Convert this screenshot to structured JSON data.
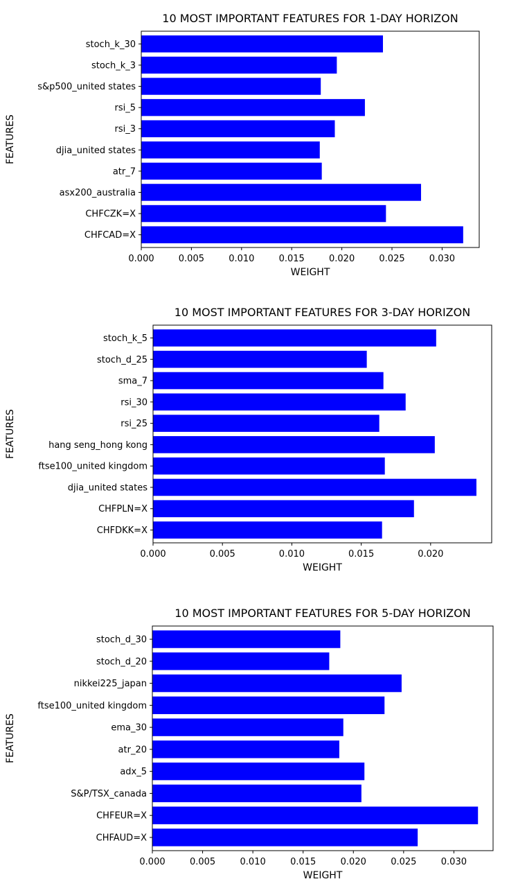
{
  "chart_data": [
    {
      "type": "bar",
      "orientation": "horizontal",
      "title": "10 MOST IMPORTANT FEATURES FOR 1-DAY HORIZON",
      "xlabel": "WEIGHT",
      "ylabel": "FEATURES",
      "categories": [
        "stoch_k_30",
        "stoch_k_3",
        "s&p500_united states",
        "rsi_5",
        "rsi_3",
        "djia_united states",
        "atr_7",
        "asx200_australia",
        "CHFCZK=X",
        "CHFCAD=X"
      ],
      "values": [
        0.0241,
        0.0195,
        0.0179,
        0.0223,
        0.0193,
        0.0178,
        0.018,
        0.0279,
        0.0244,
        0.0321
      ],
      "xlim": [
        0.0,
        0.0337
      ],
      "xticks": [
        "0.000",
        "0.005",
        "0.010",
        "0.015",
        "0.020",
        "0.025",
        "0.030"
      ],
      "bar_color": "#0000ff",
      "grid": false
    },
    {
      "type": "bar",
      "orientation": "horizontal",
      "title": "10 MOST IMPORTANT FEATURES FOR 3-DAY HORIZON",
      "xlabel": "WEIGHT",
      "ylabel": "FEATURES",
      "categories": [
        "stoch_k_5",
        "stoch_d_25",
        "sma_7",
        "rsi_30",
        "rsi_25",
        "hang seng_hong kong",
        "ftse100_united kingdom",
        "djia_united states",
        "CHFPLN=X",
        "CHFDKK=X"
      ],
      "values": [
        0.0204,
        0.0154,
        0.0166,
        0.0182,
        0.0163,
        0.0203,
        0.0167,
        0.0233,
        0.0188,
        0.0165
      ],
      "xlim": [
        0.0,
        0.0244
      ],
      "xticks": [
        "0.000",
        "0.005",
        "0.010",
        "0.015",
        "0.020"
      ],
      "bar_color": "#0000ff",
      "grid": false
    },
    {
      "type": "bar",
      "orientation": "horizontal",
      "title": "10 MOST IMPORTANT FEATURES FOR 5-DAY HORIZON",
      "xlabel": "WEIGHT",
      "ylabel": "FEATURES",
      "categories": [
        "stoch_d_30",
        "stoch_d_20",
        "nikkei225_japan",
        "ftse100_united kingdom",
        "ema_30",
        "atr_20",
        "adx_5",
        "S&P/TSX_canada",
        "CHFEUR=X",
        "CHFAUD=X"
      ],
      "values": [
        0.0187,
        0.0176,
        0.0248,
        0.0231,
        0.019,
        0.0186,
        0.0211,
        0.0208,
        0.0324,
        0.0264
      ],
      "xlim": [
        0.0,
        0.0339
      ],
      "xticks": [
        "0.000",
        "0.005",
        "0.010",
        "0.015",
        "0.020",
        "0.025",
        "0.030"
      ],
      "bar_color": "#0000ff",
      "grid": false
    }
  ]
}
